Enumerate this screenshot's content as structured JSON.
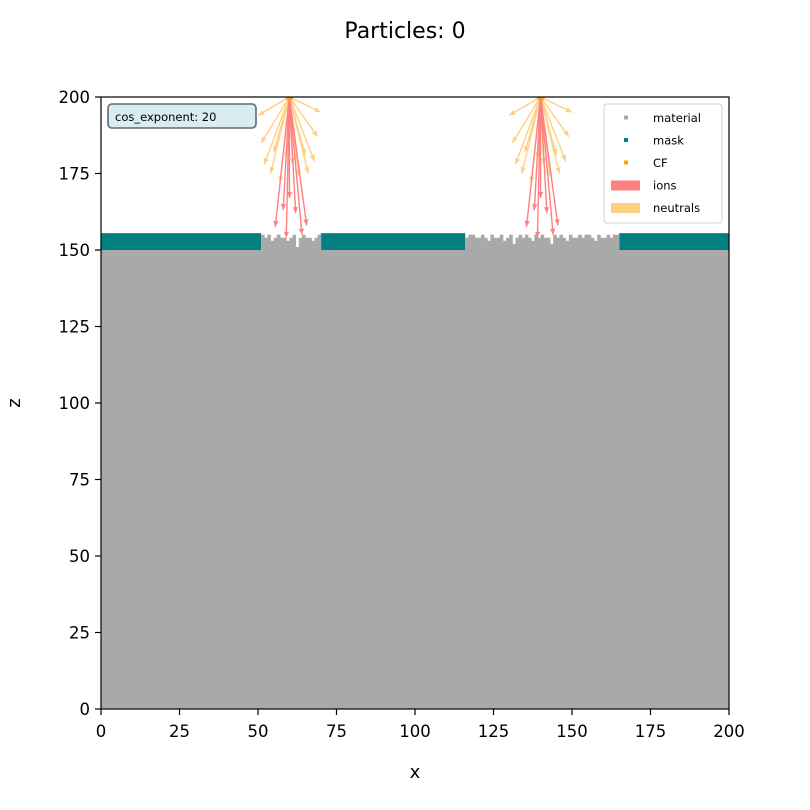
{
  "chart_data": {
    "type": "scatter",
    "title": "Particles: 0",
    "xlabel": "x",
    "ylabel": "z",
    "xlim": [
      0,
      200
    ],
    "ylim": [
      0,
      200
    ],
    "xticks": [
      0,
      25,
      50,
      75,
      100,
      125,
      150,
      175,
      200
    ],
    "yticks": [
      0,
      25,
      50,
      75,
      100,
      125,
      150,
      175,
      200
    ],
    "grid": false,
    "legend_position": "top-right",
    "legend": [
      {
        "label": "material",
        "kind": "marker",
        "color": "#a9a9a9"
      },
      {
        "label": "mask",
        "kind": "marker",
        "color": "#008080"
      },
      {
        "label": "CF",
        "kind": "marker",
        "color": "#ffa500"
      },
      {
        "label": "ions",
        "kind": "patch",
        "color": "#ff8080"
      },
      {
        "label": "neutrals",
        "kind": "patch",
        "color": "#ffd080"
      }
    ],
    "info_box": {
      "text": "cos_exponent: 20",
      "position": "top-left"
    },
    "material": {
      "color": "#a9a9a9",
      "x_range": [
        0,
        200
      ],
      "z_range": [
        0,
        150
      ]
    },
    "mask": {
      "color": "#008080",
      "z_range": [
        150,
        155.5
      ],
      "segments": [
        [
          0,
          51
        ],
        [
          70,
          116
        ],
        [
          165,
          200
        ]
      ]
    },
    "material_surface_openings": [
      {
        "x_range": [
          51,
          70
        ],
        "base_z": 150,
        "profile": [
          155,
          154,
          155,
          153,
          154,
          155,
          154,
          154,
          153,
          154,
          155,
          151,
          154,
          155,
          154,
          154,
          153,
          154,
          155
        ]
      },
      {
        "x_range": [
          116,
          165
        ],
        "base_z": 150,
        "profile": [
          154,
          155,
          155,
          154,
          154,
          155,
          154,
          153,
          155,
          154,
          154,
          155,
          153,
          154,
          155,
          152,
          154,
          155,
          154,
          155,
          154,
          153,
          155,
          154,
          155,
          154,
          154,
          152,
          155,
          154,
          155,
          154,
          153,
          155,
          154,
          154,
          155,
          154,
          155,
          155,
          154,
          153,
          155,
          154,
          154,
          155,
          154,
          155,
          155
        ]
      }
    ],
    "CF": {
      "color": "#ffa500",
      "points": []
    },
    "sources": [
      {
        "x": 60,
        "z": 200,
        "ions": {
          "color": "#ff8080",
          "directions": [
            [
              -4.5,
              -42.5
            ],
            [
              -2,
              -37
            ],
            [
              -1,
              -46
            ],
            [
              0,
              -33
            ],
            [
              2,
              -38
            ],
            [
              4,
              -45
            ],
            [
              5.5,
              -42
            ]
          ]
        },
        "neutrals": {
          "color": "#ffd080",
          "directions": [
            [
              -9,
              -15
            ],
            [
              -8,
              -22
            ],
            [
              -6,
              -25
            ],
            [
              -5,
              -18
            ],
            [
              -3,
              -28
            ],
            [
              -1,
              -20
            ],
            [
              1,
              -22
            ],
            [
              3,
              -26
            ],
            [
              5,
              -19
            ],
            [
              6,
              -25
            ],
            [
              8,
              -21
            ],
            [
              9,
              -13
            ],
            [
              -10,
              -6
            ],
            [
              10,
              -5
            ]
          ]
        }
      },
      {
        "x": 140,
        "z": 200,
        "ions": {
          "color": "#ff8080",
          "directions": [
            [
              -4.5,
              -42.5
            ],
            [
              -2,
              -37
            ],
            [
              -1,
              -46
            ],
            [
              0,
              -33
            ],
            [
              2,
              -38
            ],
            [
              4,
              -45
            ],
            [
              5.5,
              -42
            ]
          ]
        },
        "neutrals": {
          "color": "#ffd080",
          "directions": [
            [
              -9,
              -15
            ],
            [
              -8,
              -22
            ],
            [
              -6,
              -25
            ],
            [
              -5,
              -18
            ],
            [
              -3,
              -28
            ],
            [
              -1,
              -20
            ],
            [
              1,
              -22
            ],
            [
              3,
              -26
            ],
            [
              5,
              -19
            ],
            [
              6,
              -25
            ],
            [
              8,
              -21
            ],
            [
              9,
              -13
            ],
            [
              -10,
              -6
            ],
            [
              10,
              -5
            ]
          ]
        }
      }
    ]
  }
}
